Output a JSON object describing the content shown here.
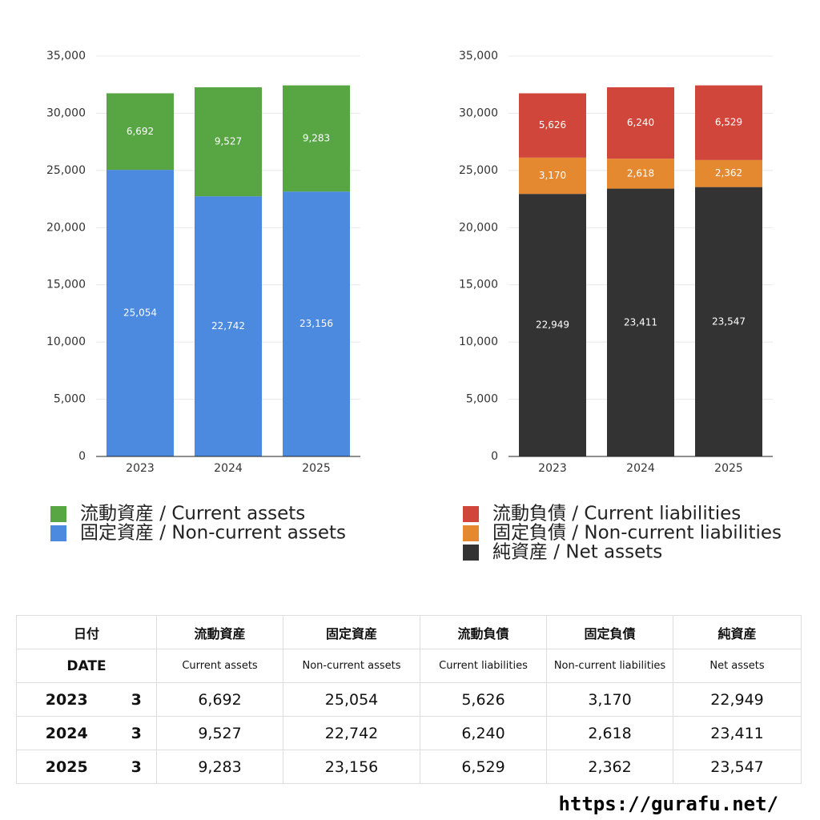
{
  "chart_data": [
    {
      "type": "bar",
      "stacked": true,
      "categories": [
        "2023",
        "2024",
        "2025"
      ],
      "ylim": [
        0,
        35000
      ],
      "yticks": [
        0,
        {
          "value": 5000,
          "label": "5,000"
        },
        {
          "value": 10000,
          "label": "10,000"
        },
        {
          "value": 15000,
          "label": "15,000"
        },
        {
          "value": 20000,
          "label": "20,000"
        },
        {
          "value": 25000,
          "label": "25,000"
        },
        {
          "value": 30000,
          "label": "30,000"
        },
        {
          "value": 35000,
          "label": "35,000"
        }
      ],
      "grid": true,
      "series": [
        {
          "name": "流動資産 / Current assets",
          "color": "#58a544",
          "values": [
            6692,
            9527,
            9283
          ],
          "value_labels": [
            "6,692",
            "9,527",
            "9,283"
          ]
        },
        {
          "name": "固定資産 / Non-current assets",
          "color": "#4b8ade",
          "values": [
            25054,
            22742,
            23156
          ],
          "value_labels": [
            "25,054",
            "22,742",
            "23,156"
          ]
        }
      ]
    },
    {
      "type": "bar",
      "stacked": true,
      "categories": [
        "2023",
        "2024",
        "2025"
      ],
      "ylim": [
        0,
        35000
      ],
      "yticks": [
        0,
        {
          "value": 5000,
          "label": "5,000"
        },
        {
          "value": 10000,
          "label": "10,000"
        },
        {
          "value": 15000,
          "label": "15,000"
        },
        {
          "value": 20000,
          "label": "20,000"
        },
        {
          "value": 25000,
          "label": "25,000"
        },
        {
          "value": 30000,
          "label": "30,000"
        },
        {
          "value": 35000,
          "label": "35,000"
        }
      ],
      "grid": true,
      "series": [
        {
          "name": "流動負債 / Current liabilities",
          "color": "#d0463a",
          "values": [
            5626,
            6240,
            6529
          ],
          "value_labels": [
            "5,626",
            "6,240",
            "6,529"
          ]
        },
        {
          "name": "固定負債 / Non-current liabilities",
          "color": "#e4892f",
          "values": [
            3170,
            2618,
            2362
          ],
          "value_labels": [
            "3,170",
            "2,618",
            "2,362"
          ]
        },
        {
          "name": "純資産 / Net assets",
          "color": "#333333",
          "values": [
            22949,
            23411,
            23547
          ],
          "value_labels": [
            "22,949",
            "23,411",
            "23,547"
          ]
        }
      ]
    }
  ],
  "table": {
    "header": [
      "日付",
      "流動資産",
      "固定資産",
      "流動負債",
      "固定負債",
      "純資産"
    ],
    "subheader": [
      "DATE",
      "Current assets",
      "Non-current assets",
      "Current liabilities",
      "Non-current liabilities",
      "Net assets"
    ],
    "rows": [
      [
        "2023",
        "3",
        "6,692",
        "25,054",
        "5,626",
        "3,170",
        "22,949"
      ],
      [
        "2024",
        "3",
        "9,527",
        "22,742",
        "6,240",
        "2,618",
        "23,411"
      ],
      [
        "2025",
        "3",
        "9,283",
        "23,156",
        "6,529",
        "2,362",
        "23,547"
      ]
    ]
  },
  "footer": "https://gurafu.net/"
}
